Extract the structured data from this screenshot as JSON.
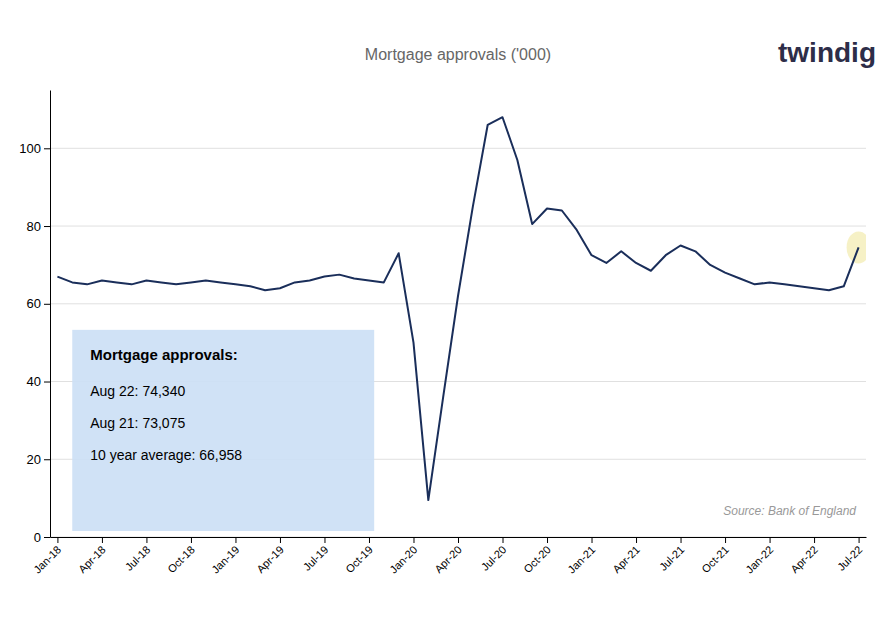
{
  "chart_data": {
    "type": "line",
    "title": "Mortgage approvals ('000)",
    "categories": [
      "Jan-18",
      null,
      null,
      "Apr-18",
      null,
      null,
      "Jul-18",
      null,
      null,
      "Oct-18",
      null,
      null,
      "Jan-19",
      null,
      null,
      "Apr-19",
      null,
      null,
      "Jul-19",
      null,
      null,
      "Oct-19",
      null,
      null,
      "Jan-20",
      null,
      null,
      "Apr-20",
      null,
      null,
      "Jul-20",
      null,
      null,
      "Oct-20",
      null,
      null,
      "Jan-21",
      null,
      null,
      "Apr-21",
      null,
      null,
      "Jul-21",
      null,
      null,
      "Oct-21",
      null,
      null,
      "Jan-22",
      null,
      null,
      "Apr-22",
      null,
      null,
      "Jul-22"
    ],
    "values": [
      67.0,
      65.5,
      65.0,
      66.0,
      65.5,
      65.0,
      66.0,
      65.5,
      65.0,
      65.5,
      66.0,
      65.5,
      65.0,
      64.5,
      63.5,
      64.0,
      65.5,
      66.0,
      67.0,
      67.5,
      66.5,
      66.0,
      65.5,
      73.0,
      50.0,
      9.5,
      36.0,
      62.0,
      85.0,
      106.0,
      108.0,
      97.0,
      80.5,
      84.5,
      84.0,
      79.0,
      72.5,
      70.5,
      73.5,
      70.5,
      68.5,
      72.5,
      75.0,
      73.5,
      70.0,
      68.0,
      66.5,
      65.0,
      65.5,
      65.0,
      64.5,
      64.0,
      63.5,
      64.5,
      74.5
    ],
    "color": "#1a2e5a",
    "ylim": [
      0,
      115
    ],
    "yticks": [
      0,
      20,
      40,
      60,
      80,
      100
    ],
    "grid": true,
    "annotation": {
      "title": "Mortgage approvals:",
      "lines": [
        "Aug 22: 74,340",
        "Aug 21: 73,075",
        "10 year average: 66,958"
      ]
    },
    "source": "Source: Bank of England",
    "logo": "twindig"
  }
}
